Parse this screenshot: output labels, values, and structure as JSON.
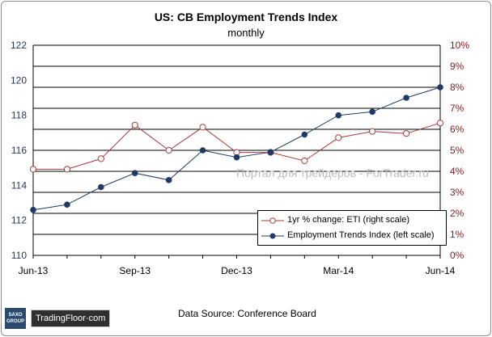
{
  "title": "US: CB Employment Trends Index",
  "subtitle": "monthly",
  "watermark": "Портал для трейдеров - ForTrader.ru",
  "source": "Data Source: Conference Board",
  "brand": {
    "logo_line1": "SAXO",
    "logo_line2": "GROUP",
    "name": "TradingFloor·com"
  },
  "colors": {
    "eti": "#1f3a66",
    "pct": "#a83a3a",
    "grid": "#000000"
  },
  "chart_data": {
    "type": "line",
    "x_tick_labels": [
      "Jun-13",
      "Sep-13",
      "Dec-13",
      "Mar-14",
      "Jun-14"
    ],
    "x_tick_indices": [
      0,
      3,
      6,
      9,
      12
    ],
    "x": [
      "Jun-13",
      "Jul-13",
      "Aug-13",
      "Sep-13",
      "Oct-13",
      "Nov-13",
      "Dec-13",
      "Jan-14",
      "Feb-14",
      "Mar-14",
      "Apr-14",
      "May-14",
      "Jun-14"
    ],
    "y_left": {
      "ticks": [
        110,
        112,
        114,
        116,
        118,
        120,
        122
      ],
      "range": [
        110,
        122
      ]
    },
    "y_right": {
      "ticks": [
        "0%",
        "1%",
        "2%",
        "3%",
        "4%",
        "5%",
        "6%",
        "7%",
        "8%",
        "9%",
        "10%"
      ],
      "range": [
        0,
        10
      ]
    },
    "legend_position": "bottom-right",
    "series": [
      {
        "name": "1yr % change: ETI (right scale)",
        "axis": "right",
        "marker": "open-circle",
        "values": [
          4.1,
          4.1,
          4.6,
          6.2,
          5.0,
          6.1,
          4.9,
          4.9,
          4.5,
          5.6,
          5.9,
          5.8,
          6.3
        ]
      },
      {
        "name": "Employment Trends Index (left scale)",
        "axis": "left",
        "marker": "filled-circle",
        "values": [
          112.6,
          112.9,
          113.9,
          114.7,
          114.3,
          116.0,
          115.6,
          115.9,
          116.9,
          118.0,
          118.2,
          119.0,
          119.6
        ]
      }
    ]
  }
}
